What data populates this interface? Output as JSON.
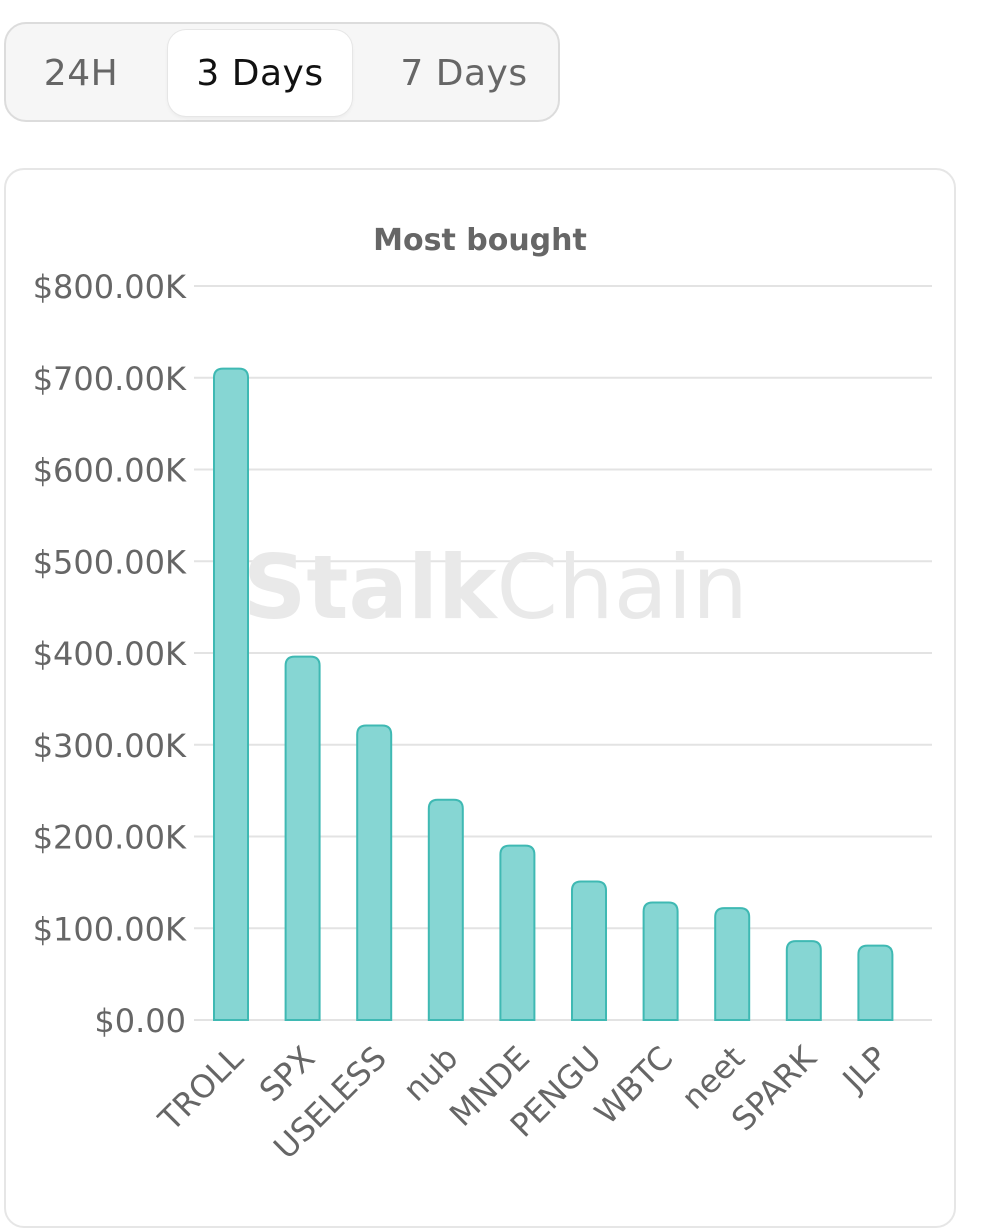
{
  "tabs": [
    {
      "label": "24H",
      "active": false
    },
    {
      "label": "3 Days",
      "active": true
    },
    {
      "label": "7 Days",
      "active": false
    }
  ],
  "watermark": {
    "bold": "Stalk",
    "light": "Chain"
  },
  "colors": {
    "bar_fill": "#86d6d3",
    "bar_stroke": "#3fb9b3",
    "grid": "#e3e3e3",
    "axis_text": "#666666",
    "title_text": "#666666",
    "active_tab_text": "#111111",
    "tab_text": "#666666"
  },
  "chart_data": {
    "type": "bar",
    "title": "Most bought",
    "xlabel": "",
    "ylabel": "",
    "categories": [
      "TROLL",
      "SPX",
      "USELESS",
      "nub",
      "MNDE",
      "PENGU",
      "WBTC",
      "neet",
      "SPARK",
      "JLP"
    ],
    "values": [
      710000,
      396000,
      321000,
      240000,
      190000,
      151000,
      128000,
      122000,
      86000,
      81000
    ],
    "ylim": [
      0,
      800000
    ],
    "yticks": [
      0,
      100000,
      200000,
      300000,
      400000,
      500000,
      600000,
      700000,
      800000
    ],
    "ytick_labels": [
      "$0.00",
      "$100.00K",
      "$200.00K",
      "$300.00K",
      "$400.00K",
      "$500.00K",
      "$600.00K",
      "$700.00K",
      "$800.00K"
    ],
    "grid": true,
    "legend": "none"
  }
}
